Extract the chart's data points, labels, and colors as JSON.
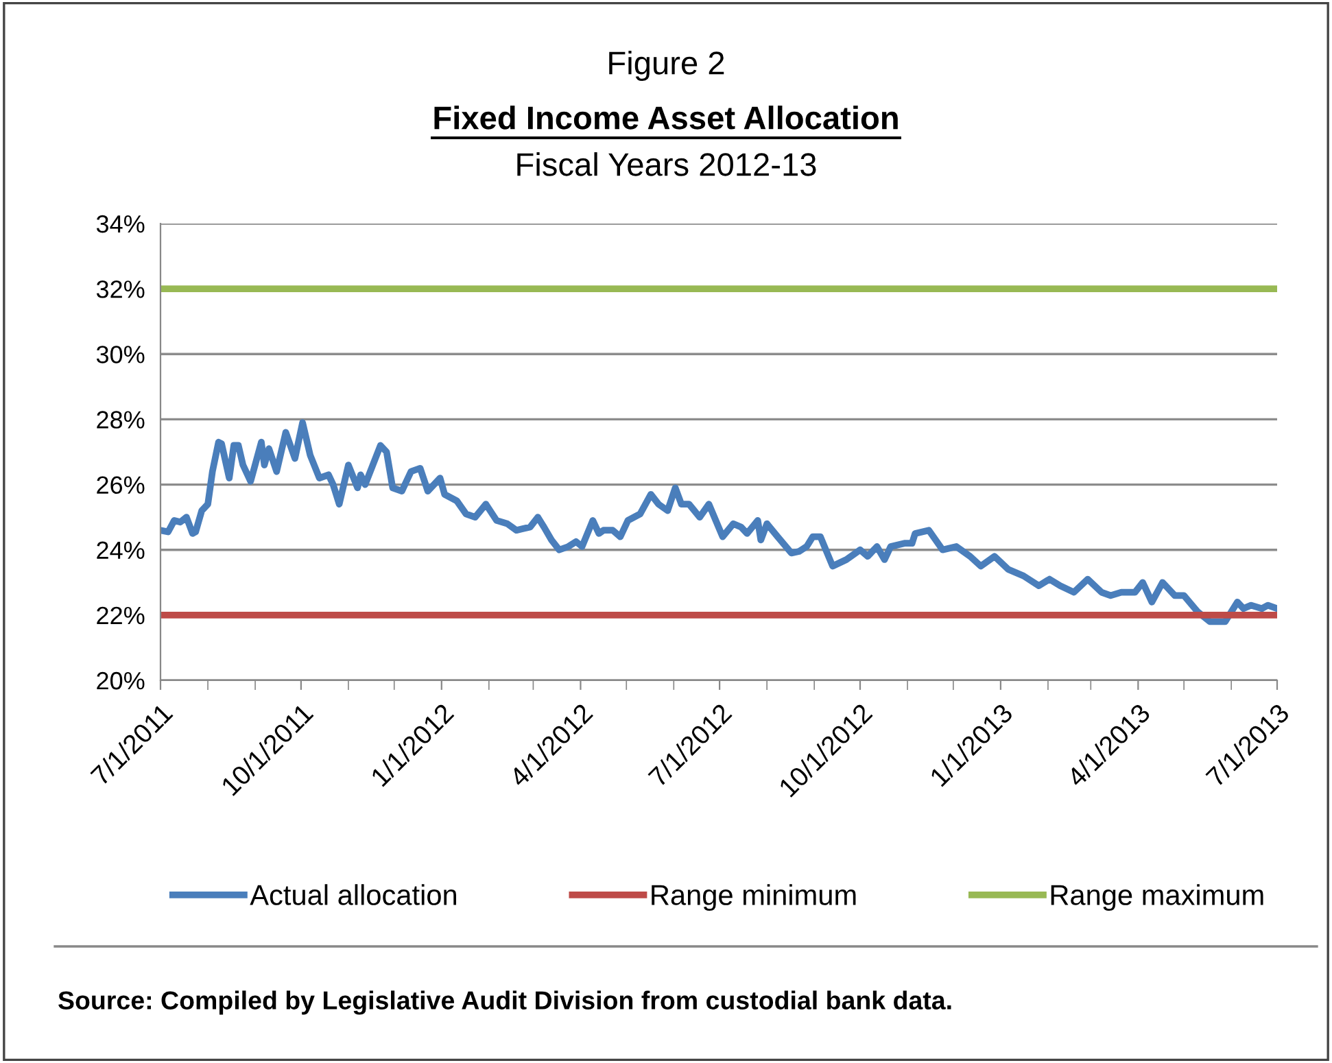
{
  "chart_data": {
    "type": "line",
    "title": "Fixed Income Asset Allocation",
    "subtitle": "Fiscal Years 2012-13",
    "annotations": [
      "Figure 2",
      "Source: Compiled by Legislative Audit Division from custodial bank data."
    ],
    "ylim": [
      20,
      34
    ],
    "yticks": [
      {
        "value": 20,
        "label": "20%"
      },
      {
        "value": 22,
        "label": "22%"
      },
      {
        "value": 24,
        "label": "24%"
      },
      {
        "value": 26,
        "label": "26%"
      },
      {
        "value": 28,
        "label": "28%"
      },
      {
        "value": 30,
        "label": "30%"
      },
      {
        "value": 32,
        "label": "32%"
      },
      {
        "value": 34,
        "label": "34%"
      }
    ],
    "xlim": [
      "2011-07-01",
      "2013-07-01"
    ],
    "xticks": [
      {
        "value": "2011-07-01",
        "label": "7/1/2011"
      },
      {
        "value": "2011-10-01",
        "label": "10/1/2011"
      },
      {
        "value": "2012-01-01",
        "label": "1/1/2012"
      },
      {
        "value": "2012-04-01",
        "label": "4/1/2012"
      },
      {
        "value": "2012-07-01",
        "label": "7/1/2012"
      },
      {
        "value": "2012-10-01",
        "label": "10/1/2012"
      },
      {
        "value": "2013-01-01",
        "label": "1/1/2013"
      },
      {
        "value": "2013-04-01",
        "label": "4/1/2013"
      },
      {
        "value": "2013-07-01",
        "label": "7/1/2013"
      }
    ],
    "grid": "y",
    "legend": "bottom",
    "series": [
      {
        "name": "Actual allocation",
        "color": "#4a7ebb",
        "x": [
          "2011-07-01",
          "2011-07-06",
          "2011-07-10",
          "2011-07-14",
          "2011-07-18",
          "2011-07-22",
          "2011-07-24",
          "2011-07-28",
          "2011-08-01",
          "2011-08-04",
          "2011-08-08",
          "2011-08-10",
          "2011-08-15",
          "2011-08-18",
          "2011-08-21",
          "2011-08-24",
          "2011-08-29",
          "2011-09-05",
          "2011-09-07",
          "2011-09-10",
          "2011-09-15",
          "2011-09-21",
          "2011-09-27",
          "2011-10-02",
          "2011-10-07",
          "2011-10-13",
          "2011-10-19",
          "2011-10-22",
          "2011-10-26",
          "2011-11-01",
          "2011-11-07",
          "2011-11-09",
          "2011-11-12",
          "2011-11-17",
          "2011-11-22",
          "2011-11-26",
          "2011-11-30",
          "2011-12-06",
          "2011-12-12",
          "2011-12-18",
          "2011-12-23",
          "2011-12-31",
          "2012-01-03",
          "2012-01-11",
          "2012-01-17",
          "2012-01-23",
          "2012-01-30",
          "2012-02-06",
          "2012-02-13",
          "2012-02-19",
          "2012-02-28",
          "2012-03-04",
          "2012-03-08",
          "2012-03-13",
          "2012-03-18",
          "2012-03-24",
          "2012-03-29",
          "2012-04-02",
          "2012-04-09",
          "2012-04-13",
          "2012-04-16",
          "2012-04-22",
          "2012-04-27",
          "2012-05-02",
          "2012-05-10",
          "2012-05-17",
          "2012-05-22",
          "2012-05-28",
          "2012-06-02",
          "2012-06-06",
          "2012-06-11",
          "2012-06-18",
          "2012-06-24",
          "2012-07-03",
          "2012-07-10",
          "2012-07-15",
          "2012-07-19",
          "2012-07-26",
          "2012-07-28",
          "2012-08-01",
          "2012-08-08",
          "2012-08-17",
          "2012-08-22",
          "2012-08-27",
          "2012-08-31",
          "2012-09-05",
          "2012-09-13",
          "2012-09-22",
          "2012-10-01",
          "2012-10-06",
          "2012-10-12",
          "2012-10-17",
          "2012-10-21",
          "2012-10-30",
          "2012-11-04",
          "2012-11-06",
          "2012-11-15",
          "2012-11-24",
          "2012-12-03",
          "2012-12-12",
          "2012-12-19",
          "2012-12-28",
          "2013-01-06",
          "2013-01-16",
          "2013-01-26",
          "2013-02-02",
          "2013-02-09",
          "2013-02-18",
          "2013-02-27",
          "2013-03-08",
          "2013-03-14",
          "2013-03-21",
          "2013-03-30",
          "2013-04-04",
          "2013-04-10",
          "2013-04-17",
          "2013-04-25",
          "2013-05-01",
          "2013-05-10",
          "2013-05-18",
          "2013-05-22",
          "2013-05-28",
          "2013-06-05",
          "2013-06-09",
          "2013-06-14",
          "2013-06-21",
          "2013-06-25",
          "2013-07-01"
        ],
        "values": [
          24.6,
          24.55,
          24.9,
          24.85,
          25.0,
          24.5,
          24.55,
          25.2,
          25.4,
          26.4,
          27.3,
          27.25,
          26.2,
          27.2,
          27.2,
          26.6,
          26.1,
          27.3,
          26.6,
          27.1,
          26.4,
          27.6,
          26.8,
          27.9,
          26.9,
          26.2,
          26.3,
          26.0,
          25.4,
          26.6,
          25.9,
          26.3,
          26.0,
          26.6,
          27.2,
          27.0,
          25.9,
          25.8,
          26.4,
          26.5,
          25.8,
          26.2,
          25.7,
          25.5,
          25.1,
          25.0,
          25.4,
          24.9,
          24.8,
          24.6,
          24.7,
          25.0,
          24.7,
          24.3,
          24.0,
          24.1,
          24.25,
          24.1,
          24.9,
          24.5,
          24.6,
          24.6,
          24.4,
          24.9,
          25.1,
          25.7,
          25.4,
          25.2,
          25.9,
          25.4,
          25.4,
          25.0,
          25.4,
          24.4,
          24.8,
          24.7,
          24.5,
          24.9,
          24.3,
          24.8,
          24.4,
          23.9,
          23.95,
          24.1,
          24.4,
          24.4,
          23.5,
          23.7,
          24.0,
          23.8,
          24.1,
          23.7,
          24.1,
          24.2,
          24.2,
          24.5,
          24.6,
          24.0,
          24.1,
          23.8,
          23.5,
          23.8,
          23.4,
          23.2,
          22.9,
          23.1,
          22.9,
          22.7,
          23.1,
          22.7,
          22.6,
          22.7,
          22.7,
          23.0,
          22.4,
          23.0,
          22.6,
          22.6,
          22.1,
          21.8,
          21.8,
          21.8,
          22.4,
          22.2,
          22.3,
          22.2,
          22.3,
          22.2
        ]
      },
      {
        "name": "Range minimum",
        "color": "#be4b48",
        "x": [
          "2011-07-01",
          "2013-07-01"
        ],
        "values": [
          22,
          22
        ]
      },
      {
        "name": "Range maximum",
        "color": "#98b954",
        "x": [
          "2011-07-01",
          "2013-07-01"
        ],
        "values": [
          32,
          32
        ]
      }
    ]
  }
}
